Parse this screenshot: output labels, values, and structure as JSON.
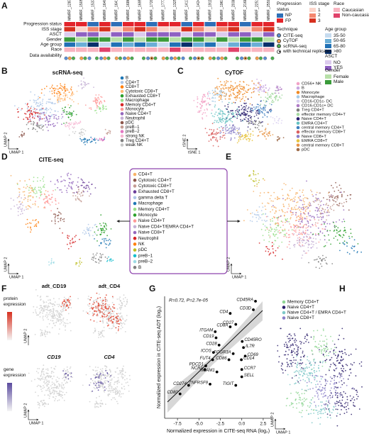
{
  "panel_labels": [
    "A",
    "B",
    "C",
    "D",
    "E",
    "F",
    "G",
    "H"
  ],
  "axes": {
    "umap_x": "UMAP 1",
    "umap_y": "UMAP 2",
    "tsne_x": "tSNE 1",
    "tsne_y": "tSNE 2"
  },
  "panel_a": {
    "samples": [
      "MMRF_1287",
      "MMRF_1505",
      "MMRF_1537",
      "MMRF_1640",
      "MMRF_1641",
      "MMRF_1686",
      "MMRF_1695",
      "MMRF_1720",
      "MMRF_1777",
      "MMRF_1325",
      "MMRF_1413",
      "MMRF_1424",
      "MMRF_1911",
      "MMRF_1967",
      "MMRF_2038",
      "MMRF_2168",
      "MMRF_2251",
      "MMRF_2559"
    ],
    "rows": [
      {
        "label": "Progression status",
        "levels": [
          {
            "label": "NP",
            "color": "#2e6fb7"
          },
          {
            "label": "FP",
            "color": "#e3242b"
          }
        ],
        "values": [
          "FP",
          "FP",
          "NP",
          "FP",
          "NP",
          "FP",
          "FP",
          "NP",
          "FP",
          "FP",
          "NP",
          "FP",
          "NP",
          "FP",
          "FP",
          "NP",
          "FP",
          "FP"
        ]
      },
      {
        "label": "ISS stage",
        "levels": [
          {
            "label": "1",
            "color": "#fcd5cb"
          },
          {
            "label": "2",
            "color": "#f4876f"
          },
          {
            "label": "3",
            "color": "#d7301f"
          }
        ],
        "values": [
          "3",
          "1",
          "2",
          "3",
          "1",
          "2",
          "3",
          "2",
          "1",
          "1",
          "3",
          "2",
          "1",
          "2",
          "3",
          "1",
          "2",
          "3"
        ]
      },
      {
        "label": "ASCT",
        "levels": [
          {
            "label": "NO",
            "color": "#dccbee"
          },
          {
            "label": "YES",
            "color": "#8e5fc2"
          }
        ],
        "values": [
          "NO",
          "YES",
          "YES",
          "NO",
          "YES",
          "YES",
          "NO",
          "YES",
          "YES",
          "YES",
          "NO",
          "YES",
          "YES",
          "NO",
          "YES",
          "YES",
          "NO",
          "YES"
        ]
      },
      {
        "label": "Gender",
        "levels": [
          {
            "label": "Female",
            "color": "#b8e0a8"
          },
          {
            "label": "Male",
            "color": "#3a9b3a"
          }
        ],
        "values": [
          "Male",
          "Female",
          "Male",
          "Male",
          "Female",
          "Male",
          "Female",
          "Male",
          "Male",
          "Female",
          "Male",
          "Male",
          "Female",
          "Male",
          "Female",
          "Male",
          "Male",
          "Female"
        ]
      },
      {
        "label": "Age group",
        "levels": [
          {
            "label": "35-50",
            "color": "#c6dbef"
          },
          {
            "label": "50-65",
            "color": "#6baed6"
          },
          {
            "label": "65-80",
            "color": "#2171b5"
          },
          {
            "label": ">80",
            "color": "#08306b"
          }
        ],
        "values": [
          "65-80",
          "50-65",
          ">80",
          "35-50",
          "65-80",
          "50-65",
          "65-80",
          "50-65",
          "35-50",
          "65-80",
          ">80",
          "50-65",
          "65-80",
          "35-50",
          "50-65",
          "65-80",
          "50-65",
          ">80"
        ]
      },
      {
        "label": "Race",
        "levels": [
          {
            "label": "Caucasian",
            "color": "#f8b4c0"
          },
          {
            "label": "Non-caucasian",
            "color": "#e0436b"
          }
        ],
        "values": [
          "Caucasian",
          "Caucasian",
          "Caucasian",
          "Non-caucasian",
          "Caucasian",
          "Caucasian",
          "Caucasian",
          "Caucasian",
          "Caucasian",
          "Non-caucasian",
          "Caucasian",
          "Caucasian",
          "Caucasian",
          "Caucasian",
          "Non-caucasian",
          "Caucasian",
          "Caucasian",
          "Caucasian"
        ]
      }
    ],
    "data_availability": {
      "label": "Data availability",
      "legend_title": "Technique",
      "levels": [
        {
          "label": "CITE-seq",
          "color": "#5b8fd6"
        },
        {
          "label": "CyTOF",
          "color": "#f5a04a"
        },
        {
          "label": "scRNA-seq",
          "color": "#4caf50"
        }
      ],
      "replicate_label": "with technical replicates",
      "values": [
        [
          "CITE-seq",
          "CyTOF",
          "scRNA-seq"
        ],
        [
          "CyTOF",
          "scRNA-seq"
        ],
        [
          "CITE-seq",
          "scRNA-seq"
        ],
        [
          "CITE-seq",
          "CyTOF",
          "scRNA-seq"
        ],
        [
          "CyTOF",
          "scRNA-seq"
        ],
        [
          "CITE-seq",
          "CyTOF",
          "scRNA-seq"
        ],
        [
          "scRNA-seq"
        ],
        [
          "CITE-seq",
          "CyTOF",
          "scRNA-seq"
        ],
        [
          "CyTOF",
          "scRNA-seq"
        ],
        [
          "CITE-seq",
          "CyTOF",
          "scRNA-seq"
        ],
        [
          "CITE-seq",
          "scRNA-seq"
        ],
        [
          "CITE-seq",
          "CyTOF",
          "scRNA-seq"
        ],
        [
          "CyTOF",
          "scRNA-seq"
        ],
        [
          "CITE-seq",
          "CyTOF",
          "scRNA-seq"
        ],
        [
          "scRNA-seq"
        ],
        [
          "CITE-seq",
          "CyTOF",
          "scRNA-seq"
        ],
        [
          "CyTOF",
          "scRNA-seq"
        ],
        [
          "CITE-seq",
          "scRNA-seq"
        ]
      ],
      "replicate_samples": [
        "MMRF_1720",
        "MMRF_1424",
        "MMRF_2168"
      ]
    }
  },
  "panel_b": {
    "title": "scRNA-seq",
    "legend": [
      {
        "label": "B",
        "color": "#1f77b4"
      },
      {
        "label": "CD4+T",
        "color": "#aec7e8"
      },
      {
        "label": "CD8+T",
        "color": "#ff7f0e"
      },
      {
        "label": "Cytotoxic CD8+T",
        "color": "#ffbb78"
      },
      {
        "label": "Exhausted CD8+T",
        "color": "#2ca02c"
      },
      {
        "label": "Macrophage",
        "color": "#98df8a"
      },
      {
        "label": "Memory CD4+T",
        "color": "#d62728"
      },
      {
        "label": "Monocyte",
        "color": "#ff9896"
      },
      {
        "label": "Naive CD4+T",
        "color": "#9467bd"
      },
      {
        "label": "Neutrophil",
        "color": "#c5b0d5"
      },
      {
        "label": "pDC",
        "color": "#8c564b"
      },
      {
        "label": "preB−1",
        "color": "#c49c94"
      },
      {
        "label": "preB−2",
        "color": "#e377c2"
      },
      {
        "label": "strong NK",
        "color": "#f7b6d2"
      },
      {
        "label": "Treg CD4+T",
        "color": "#7f7f7f"
      },
      {
        "label": "weak NK",
        "color": "#c7c7c7"
      }
    ]
  },
  "panel_c": {
    "title": "CyTOF",
    "legend": [
      {
        "label": "CD56+ NK",
        "color": "#f2a3c7"
      },
      {
        "label": "B",
        "color": "#c9a7e0"
      },
      {
        "label": "Monocyte",
        "color": "#f08a24"
      },
      {
        "label": "Macrophage",
        "color": "#a6cbe8"
      },
      {
        "label": "CD16-CD1c- DC",
        "color": "#d9d0f0"
      },
      {
        "label": "CD16-CD1c+ DC",
        "color": "#b07cc6"
      },
      {
        "label": "Treg CD4+T",
        "color": "#7f7f7f"
      },
      {
        "label": "effector memory CD4+T",
        "color": "#a4d9a0"
      },
      {
        "label": "Naive CD4+T",
        "color": "#2a1f6e"
      },
      {
        "label": "EMRA CD4+T",
        "color": "#66c2c2"
      },
      {
        "label": "central memory CD4+T",
        "color": "#3f7fbf"
      },
      {
        "label": "effector memory CD8+T",
        "color": "#d95f5f"
      },
      {
        "label": "Naive CD8+T",
        "color": "#8a7fc8"
      },
      {
        "label": "EMRA CD8+T",
        "color": "#e8c33f"
      },
      {
        "label": "central memory CD8+T",
        "color": "#e8964a"
      },
      {
        "label": "pDC",
        "color": "#9e6b4a"
      }
    ]
  },
  "panel_d": {
    "title": "CITE-seq",
    "legend": [
      {
        "label": "CD4+T",
        "color": "#f7b267"
      },
      {
        "label": "Cytotoxic CD4+T",
        "color": "#8c564b"
      },
      {
        "label": "Cytotoxic CD8+T",
        "color": "#c49c94"
      },
      {
        "label": "Exhausted CD8+T",
        "color": "#6a3d9a"
      },
      {
        "label": "gamma delta T",
        "color": "#aec7e8"
      },
      {
        "label": "Macrophage",
        "color": "#1f77b4"
      },
      {
        "label": "Memory CD4+T",
        "color": "#98df8a"
      },
      {
        "label": "Monocyte",
        "color": "#2ca02c"
      },
      {
        "label": "Naive CD4+T",
        "color": "#ff9896"
      },
      {
        "label": "Naive CD4+T/EMRA CD4+T",
        "color": "#c5b0d5"
      },
      {
        "label": "Naive CD8+T",
        "color": "#9467bd"
      },
      {
        "label": "Neutrophil",
        "color": "#d62728"
      },
      {
        "label": "NK",
        "color": "#ff7f0e"
      },
      {
        "label": "pDC",
        "color": "#bcbd22"
      },
      {
        "label": "preB−1",
        "color": "#17becf"
      },
      {
        "label": "preB−2",
        "color": "#9edae5"
      },
      {
        "label": "B",
        "color": "#7f7f7f"
      }
    ]
  },
  "panel_f": {
    "protein_titles": [
      "adt_CD19",
      "adt_CD4"
    ],
    "gene_titles": [
      "CD19",
      "CD4"
    ],
    "protein_label": "protein expression",
    "gene_label": "gene expression"
  },
  "chart_data": {
    "type": "scatter",
    "annotation": "R=0.72, P=2.7e-05",
    "x_label": "Normalized expression in CITE-seq RNA (log₂)",
    "y_label": "Normalized expression in CITE-seq ADT (log₂)",
    "labels": [
      "CD45RA",
      "CD3D",
      "CD4",
      "CD27",
      "CD8A",
      "ITGAM",
      "CD19",
      "CD28",
      "CD45RO",
      "IL7R",
      "CD69",
      "CD14",
      "FCGR3A",
      "CD86",
      "CCR7",
      "SELL",
      "ICOS",
      "FUT4",
      "PDCD1",
      "NCR1",
      "NCAM1",
      "TNFRSF9",
      "TIGIT",
      "CD274",
      "CD80"
    ],
    "x": [
      1.6,
      1.35,
      -1.35,
      -0.7,
      -1.35,
      -3.1,
      -3.0,
      -2.65,
      0.05,
      0.2,
      0.4,
      -0.05,
      -1.0,
      -1.5,
      0.0,
      0.0,
      -3.3,
      -3.4,
      -4.2,
      -4.3,
      -2.9,
      -3.7,
      -0.7,
      -6.2,
      -7.2
    ],
    "values": [
      3.6,
      2.9,
      2.6,
      1.7,
      1.5,
      1.1,
      0.6,
      0.0,
      0.3,
      -0.2,
      -0.9,
      -1.2,
      -0.7,
      -1.2,
      -2.0,
      -2.6,
      -0.6,
      -1.2,
      -1.7,
      -2.0,
      -2.2,
      -3.2,
      -3.3,
      -3.3,
      -4.0
    ],
    "color": "#000000",
    "xlim": [
      -9,
      3.5
    ],
    "ylim": [
      -6,
      4
    ],
    "xticks": [
      -7.5,
      {
        "value": -5,
        "label": "-5.0"
      },
      -2.5,
      {
        "value": 0,
        "label": "0.0"
      },
      2.5
    ]
  },
  "panel_h": {
    "legend": [
      {
        "label": "Memory CD4+T",
        "color": "#8fd694"
      },
      {
        "label": "Naive CD4+T",
        "color": "#2c1f6b"
      },
      {
        "label": "Naive CD4+T / EMRA CD4+T",
        "color": "#7ec8c8"
      },
      {
        "label": "Naive CD8+T",
        "color": "#8a7fc8"
      }
    ]
  }
}
